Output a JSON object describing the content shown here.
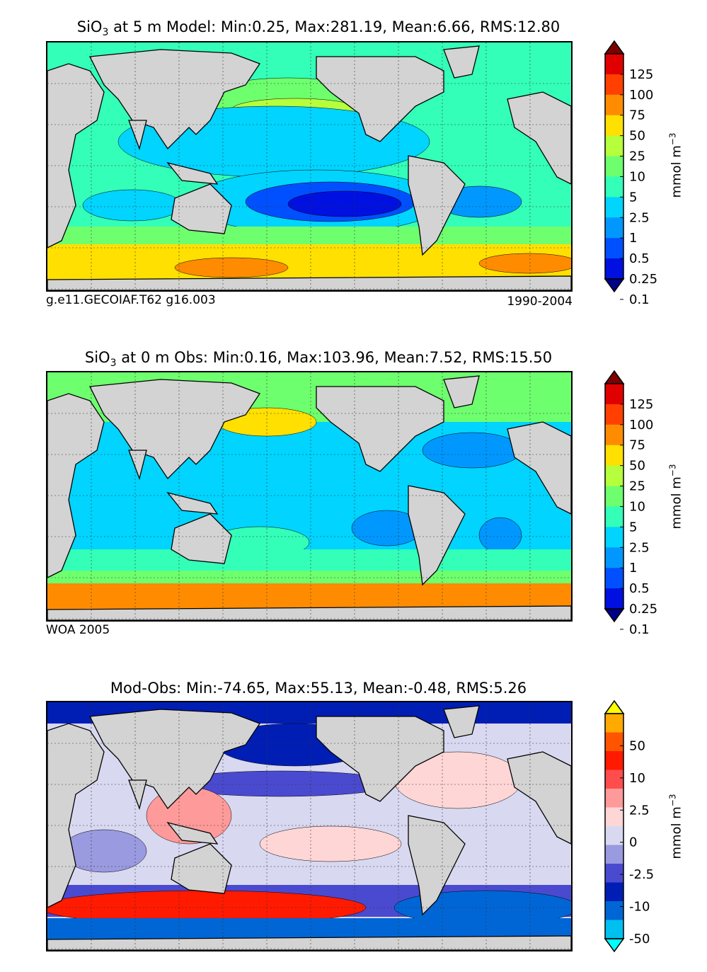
{
  "chart_data": [
    {
      "type": "contour-map",
      "title_prefix": "SiO",
      "title_sub": "3",
      "title_rest": " at 5 m Model: Min:0.25, Max:281.19, Mean:6.66, RMS:12.80",
      "footer_left": "g.e11.GECOIAF.T62 g16.003",
      "footer_right": "1990-2004",
      "units_base": "mmol m",
      "units_exp": "−3",
      "colorbar": {
        "labels": [
          "125",
          "100",
          "75",
          "50",
          "25",
          "10",
          "5",
          "2.5",
          "1",
          "0.5",
          "0.25",
          "0.1"
        ],
        "colors": [
          "#7f0000",
          "#e10000",
          "#ff4000",
          "#ff8c00",
          "#ffe000",
          "#b6ff3c",
          "#6eff6e",
          "#33ffb8",
          "#00d4ff",
          "#0098ff",
          "#0050ff",
          "#0010e0",
          "#00008a"
        ],
        "extend": "both"
      }
    },
    {
      "type": "contour-map",
      "title_prefix": "SiO",
      "title_sub": "3",
      "title_rest": " at 0 m Obs: Min:0.16, Max:103.96, Mean:7.52, RMS:15.50",
      "footer_left": "WOA 2005",
      "footer_right": "",
      "units_base": "mmol m",
      "units_exp": "−3",
      "colorbar": {
        "labels": [
          "125",
          "100",
          "75",
          "50",
          "25",
          "10",
          "5",
          "2.5",
          "1",
          "0.5",
          "0.25",
          "0.1"
        ],
        "colors": [
          "#7f0000",
          "#e10000",
          "#ff4000",
          "#ff8c00",
          "#ffe000",
          "#b6ff3c",
          "#6eff6e",
          "#33ffb8",
          "#00d4ff",
          "#0098ff",
          "#0050ff",
          "#0010e0",
          "#00008a"
        ],
        "extend": "both"
      }
    },
    {
      "type": "contour-map",
      "title_prefix": "Mod-Obs: Min:-74.65, Max:55.13, Mean:-0.48, RMS:5.26",
      "title_sub": "",
      "title_rest": "",
      "footer_left": "",
      "footer_right": "",
      "units_base": "mmol m",
      "units_exp": "−3",
      "colorbar": {
        "labels": [
          "50",
          "10",
          "2.5",
          "0",
          "-2.5",
          "-10",
          "-50"
        ],
        "colors": [
          "#ffff00",
          "#ffaa00",
          "#ff5500",
          "#ff1a00",
          "#ff4d4d",
          "#ff9a9a",
          "#ffd6d6",
          "#d8d8f0",
          "#9a9ae0",
          "#4a4ad0",
          "#001eb4",
          "#0066d6",
          "#00c0f0",
          "#00ffff"
        ],
        "extend": "both"
      }
    }
  ],
  "palette": {
    "land": "#d3d3d3",
    "grid": "#333333"
  }
}
